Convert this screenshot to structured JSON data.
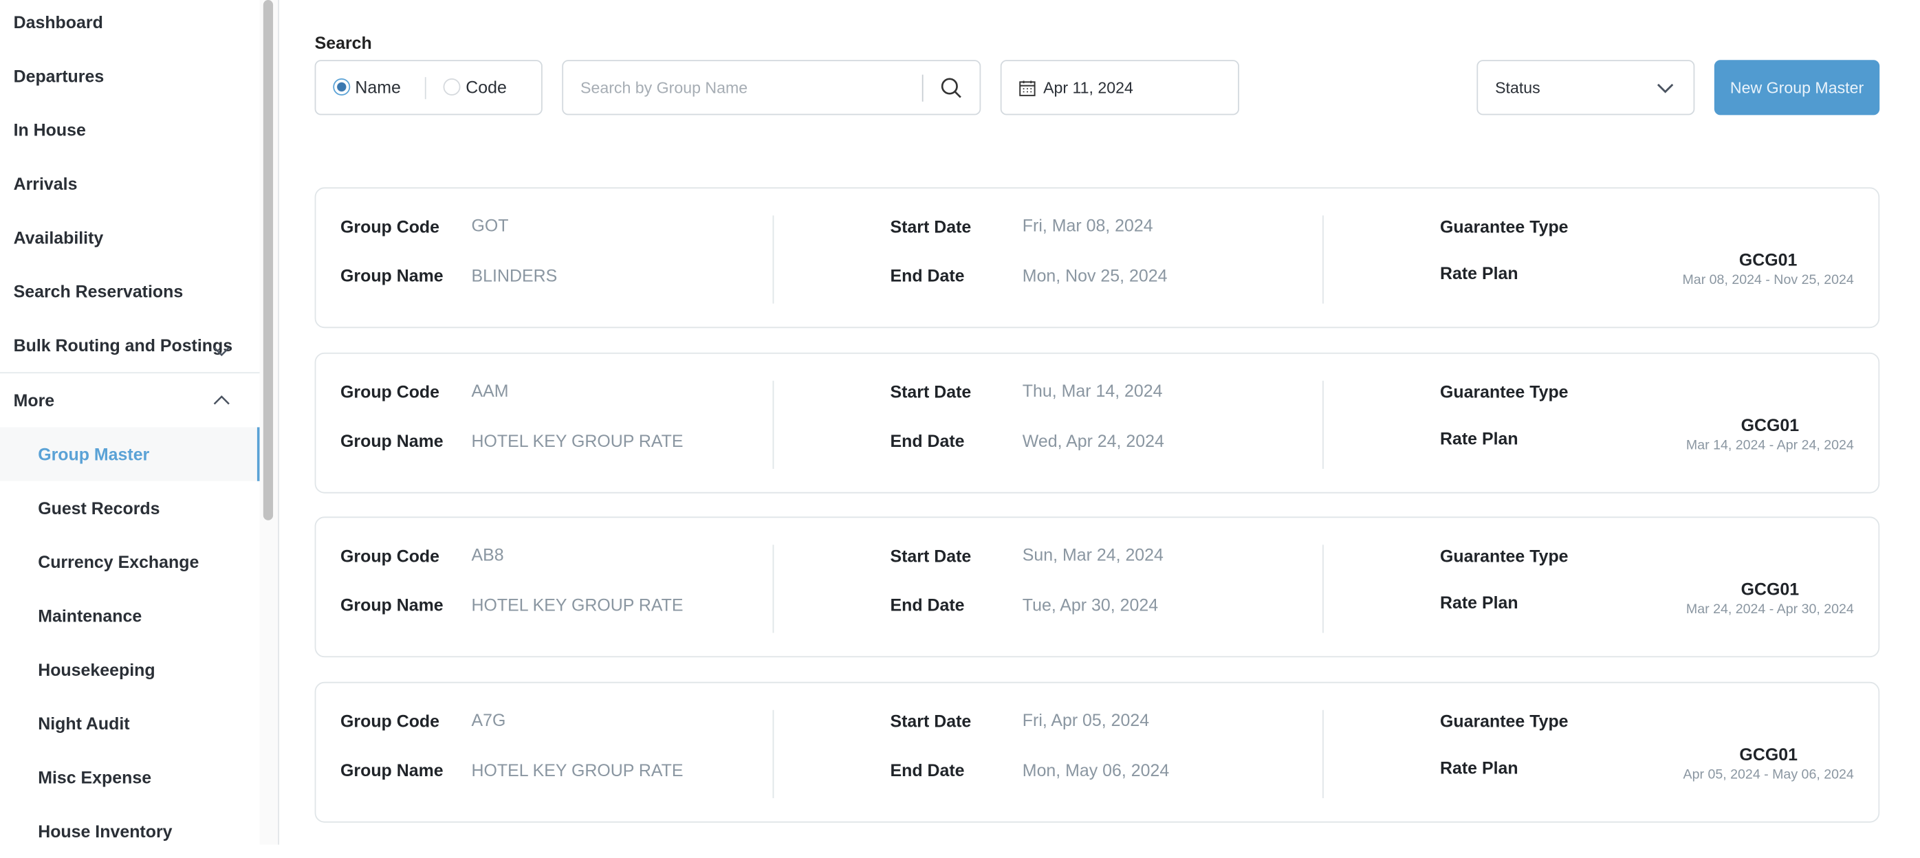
{
  "sidebar": {
    "items": [
      {
        "label": "Dashboard"
      },
      {
        "label": "Departures"
      },
      {
        "label": "In House"
      },
      {
        "label": "Arrivals"
      },
      {
        "label": "Availability"
      },
      {
        "label": "Search Reservations"
      },
      {
        "label": "Bulk Routing and Postings",
        "icon": "chevron-down-icon"
      },
      {
        "label": "More",
        "icon": "chevron-up-icon"
      }
    ],
    "sub_items": [
      {
        "label": "Group Master",
        "active": true
      },
      {
        "label": "Guest Records"
      },
      {
        "label": "Currency Exchange"
      },
      {
        "label": "Maintenance"
      },
      {
        "label": "Housekeeping"
      },
      {
        "label": "Night Audit"
      },
      {
        "label": "Misc Expense"
      },
      {
        "label": "House Inventory"
      }
    ]
  },
  "search": {
    "label": "Search",
    "mode_options": [
      {
        "label": "Name",
        "selected": true
      },
      {
        "label": "Code",
        "selected": false
      }
    ],
    "placeholder": "Search by Group Name",
    "date": "Apr 11, 2024",
    "status_placeholder": "Status",
    "new_button": "New Group Master"
  },
  "labels": {
    "group_code": "Group Code",
    "group_name": "Group Name",
    "start_date": "Start Date",
    "end_date": "End Date",
    "guarantee_type": "Guarantee Type",
    "rate_plan": "Rate Plan"
  },
  "groups": [
    {
      "code": "GOT",
      "name": "BLINDERS",
      "start": "Fri, Mar 08, 2024",
      "end": "Mon, Nov 25, 2024",
      "guarantee": "",
      "rate_plan": "GCG01",
      "rate_range": "Mar 08, 2024 - Nov 25, 2024"
    },
    {
      "code": "AAM",
      "name": "HOTEL KEY GROUP RATE",
      "start": "Thu, Mar 14, 2024",
      "end": "Wed, Apr 24, 2024",
      "guarantee": "",
      "rate_plan": "GCG01",
      "rate_range": "Mar 14, 2024 - Apr 24, 2024"
    },
    {
      "code": "AB8",
      "name": "HOTEL KEY GROUP RATE",
      "start": "Sun, Mar 24, 2024",
      "end": "Tue, Apr 30, 2024",
      "guarantee": "",
      "rate_plan": "GCG01",
      "rate_range": "Mar 24, 2024 - Apr 30, 2024"
    },
    {
      "code": "A7G",
      "name": "HOTEL KEY GROUP RATE",
      "start": "Fri, Apr 05, 2024",
      "end": "Mon, May 06, 2024",
      "guarantee": "",
      "rate_plan": "GCG01",
      "rate_range": "Apr 05, 2024 - May 06, 2024"
    }
  ],
  "colors": {
    "accent": "#519bd0",
    "active_text": "#5aa2d6",
    "muted": "#8a96a1"
  }
}
